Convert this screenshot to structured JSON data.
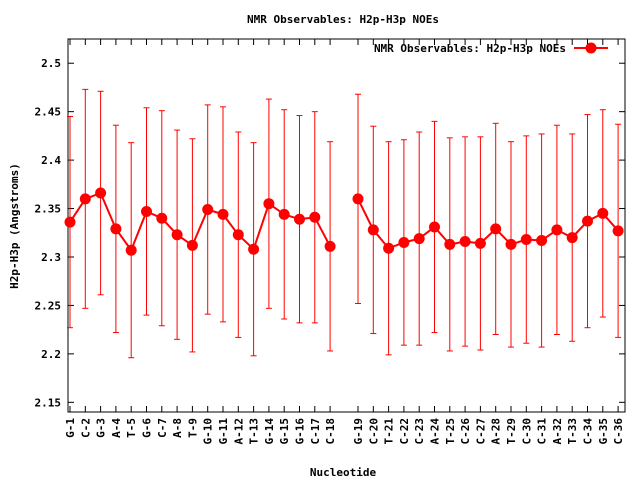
{
  "chart_data": {
    "type": "line",
    "title": "NMR Observables: H2p-H3p NOEs",
    "xlabel": "Nucleotide",
    "ylabel": "H2p-H3p (Angstroms)",
    "ylim": [
      2.14,
      2.525
    ],
    "yticks": [
      "2.15",
      "2.2",
      "2.25",
      "2.3",
      "2.35",
      "2.4",
      "2.45",
      "2.5"
    ],
    "grid": false,
    "legend_position": "top-right",
    "color": "#ff0000",
    "categories": [
      "G-1",
      "C-2",
      "G-3",
      "A-4",
      "T-5",
      "G-6",
      "C-7",
      "A-8",
      "T-9",
      "G-10",
      "G-11",
      "A-12",
      "T-13",
      "G-14",
      "G-15",
      "G-16",
      "C-17",
      "C-18",
      "G-19",
      "C-20",
      "T-21",
      "C-22",
      "C-23",
      "A-24",
      "T-25",
      "C-26",
      "C-27",
      "A-28",
      "T-29",
      "C-30",
      "C-31",
      "A-32",
      "T-33",
      "C-34",
      "G-35",
      "C-36"
    ],
    "series": [
      {
        "name": "NMR Observables: H2p-H3p NOEs",
        "segments": [
          [
            {
              "x": "G-1",
              "y": 2.336,
              "err": 0.109
            },
            {
              "x": "C-2",
              "y": 2.36,
              "err": 0.113
            },
            {
              "x": "G-3",
              "y": 2.366,
              "err": 0.105
            },
            {
              "x": "A-4",
              "y": 2.329,
              "err": 0.107
            },
            {
              "x": "T-5",
              "y": 2.307,
              "err": 0.111
            },
            {
              "x": "G-6",
              "y": 2.347,
              "err": 0.107
            },
            {
              "x": "C-7",
              "y": 2.34,
              "err": 0.111
            },
            {
              "x": "A-8",
              "y": 2.323,
              "err": 0.108
            },
            {
              "x": "T-9",
              "y": 2.312,
              "err": 0.11
            },
            {
              "x": "G-10",
              "y": 2.349,
              "err": 0.108
            },
            {
              "x": "G-11",
              "y": 2.344,
              "err": 0.111
            },
            {
              "x": "A-12",
              "y": 2.323,
              "err": 0.106
            },
            {
              "x": "T-13",
              "y": 2.308,
              "err": 0.11
            },
            {
              "x": "G-14",
              "y": 2.355,
              "err": 0.108
            },
            {
              "x": "G-15",
              "y": 2.344,
              "err": 0.108
            },
            {
              "x": "G-16",
              "y": 2.339,
              "err": 0.107
            },
            {
              "x": "C-17",
              "y": 2.341,
              "err": 0.109
            },
            {
              "x": "C-18",
              "y": 2.311,
              "err": 0.108
            }
          ],
          [
            {
              "x": "G-19",
              "y": 2.36,
              "err": 0.108
            },
            {
              "x": "C-20",
              "y": 2.328,
              "err": 0.107
            },
            {
              "x": "T-21",
              "y": 2.309,
              "err": 0.11
            },
            {
              "x": "C-22",
              "y": 2.315,
              "err": 0.106
            },
            {
              "x": "C-23",
              "y": 2.319,
              "err": 0.11
            },
            {
              "x": "A-24",
              "y": 2.331,
              "err": 0.109
            },
            {
              "x": "T-25",
              "y": 2.313,
              "err": 0.11
            },
            {
              "x": "C-26",
              "y": 2.316,
              "err": 0.108
            },
            {
              "x": "C-27",
              "y": 2.314,
              "err": 0.11
            },
            {
              "x": "A-28",
              "y": 2.329,
              "err": 0.109
            },
            {
              "x": "T-29",
              "y": 2.313,
              "err": 0.106
            },
            {
              "x": "C-30",
              "y": 2.318,
              "err": 0.107
            },
            {
              "x": "C-31",
              "y": 2.317,
              "err": 0.11
            },
            {
              "x": "A-32",
              "y": 2.328,
              "err": 0.108
            },
            {
              "x": "T-33",
              "y": 2.32,
              "err": 0.107
            },
            {
              "x": "C-34",
              "y": 2.337,
              "err": 0.11
            },
            {
              "x": "G-35",
              "y": 2.345,
              "err": 0.107
            },
            {
              "x": "C-36",
              "y": 2.327,
              "err": 0.11
            }
          ]
        ]
      }
    ]
  }
}
